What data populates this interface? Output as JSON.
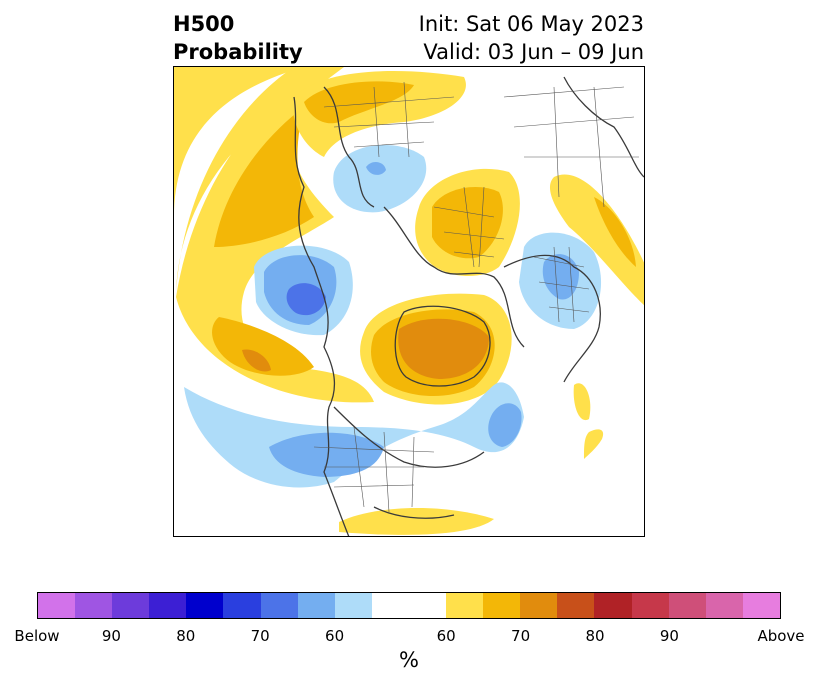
{
  "header": {
    "title_line1": "H500",
    "title_line2": "Probability",
    "init_text": "Init: Sat 06 May 2023",
    "valid_text": "Valid: 03 Jun – 09 Jun"
  },
  "colorbar": {
    "colors": [
      "#d272ea",
      "#9f55e3",
      "#6d3bdb",
      "#3c1fd4",
      "#0000cd",
      "#2a3fdf",
      "#4c73e8",
      "#74aef0",
      "#aedcf9",
      "#ffffff",
      "#ffe04b",
      "#f3b707",
      "#e18c0d",
      "#c8501a",
      "#b02226",
      "#c6384a",
      "#cf4f79",
      "#d965ab",
      "#e77ddf"
    ],
    "tick_labels": [
      "Below",
      "90",
      "80",
      "70",
      "60",
      "60",
      "70",
      "80",
      "90",
      "Above"
    ],
    "units_label": "%"
  },
  "map": {
    "projection": "north-polar-stereographic",
    "palette": {
      "below_60": "#aedcf9",
      "below_70": "#74aef0",
      "below_80": "#4c73e8",
      "above_60": "#ffe04b",
      "above_70": "#f3b707",
      "above_80": "#e18c0d",
      "coastline": "#3a3a3a",
      "borders": "#555555"
    }
  }
}
